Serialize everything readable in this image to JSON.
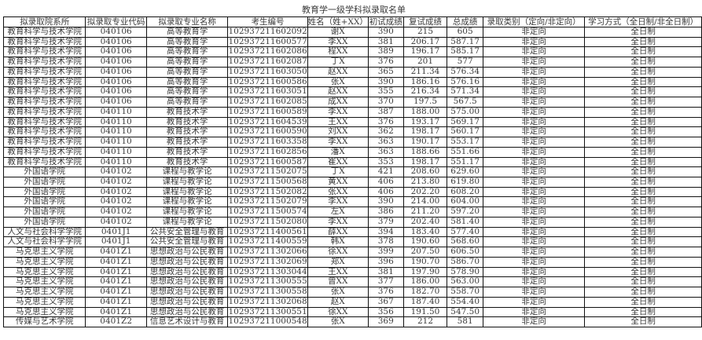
{
  "title": "教育学一级学科拟录取名单",
  "columns": [
    "拟录取院系所",
    "拟录取专业代码",
    "拟录取专业名称",
    "考生编号",
    "姓名（姓+XX）",
    "初试成绩",
    "复试成绩",
    "总成绩",
    "录取类别（定向/非定向）",
    "学习方式（全日制/非全日制）"
  ],
  "rows": [
    [
      "教育科学与技术学院",
      "040106",
      "高等教育学",
      "102937211602092",
      "谢X",
      "390",
      "215",
      "605",
      "非定向",
      "全日制"
    ],
    [
      "教育科学与技术学院",
      "040106",
      "高等教育学",
      "102937211600577",
      "李XX",
      "381",
      "206.17",
      "587.17",
      "非定向",
      "全日制"
    ],
    [
      "教育科学与技术学院",
      "040106",
      "高等教育学",
      "102937211602086",
      "程XX",
      "389",
      "196.17",
      "585.17",
      "非定向",
      "全日制"
    ],
    [
      "教育科学与技术学院",
      "040106",
      "高等教育学",
      "102937211602087",
      "丁X",
      "376",
      "201",
      "577",
      "非定向",
      "全日制"
    ],
    [
      "教育科学与技术学院",
      "040106",
      "高等教育学",
      "102937211603050",
      "赵XX",
      "365",
      "211.34",
      "576.34",
      "非定向",
      "全日制"
    ],
    [
      "教育科学与技术学院",
      "040106",
      "高等教育学",
      "102937211600586",
      "张X",
      "390",
      "186.16",
      "576.16",
      "非定向",
      "全日制"
    ],
    [
      "教育科学与技术学院",
      "040106",
      "高等教育学",
      "102937211603051",
      "赵XX",
      "355",
      "216.34",
      "571.34",
      "非定向",
      "全日制"
    ],
    [
      "教育科学与技术学院",
      "040106",
      "高等教育学",
      "102937211602085",
      "成XX",
      "370",
      "197.5",
      "567.5",
      "非定向",
      "全日制"
    ],
    [
      "教育科学与技术学院",
      "040110",
      "教育技术学",
      "102937211600589",
      "李XX",
      "387",
      "188.00",
      "575.00",
      "非定向",
      "全日制"
    ],
    [
      "教育科学与技术学院",
      "040110",
      "教育技术学",
      "102937211604539",
      "王XX",
      "376",
      "193.17",
      "569.17",
      "非定向",
      "全日制"
    ],
    [
      "教育科学与技术学院",
      "040110",
      "教育技术学",
      "102937211600590",
      "刘XX",
      "362",
      "198.17",
      "560.17",
      "非定向",
      "全日制"
    ],
    [
      "教育科学与技术学院",
      "040110",
      "教育技术学",
      "102937211603358",
      "李XX",
      "363",
      "190.17",
      "553.17",
      "非定向",
      "全日制"
    ],
    [
      "教育科学与技术学院",
      "040110",
      "教育技术学",
      "102937211602856",
      "潘X",
      "363",
      "188.66",
      "551.66",
      "非定向",
      "全日制"
    ],
    [
      "教育科学与技术学院",
      "040110",
      "教育技术学",
      "102937211600587",
      "崔XX",
      "353",
      "198.17",
      "551.17",
      "非定向",
      "全日制"
    ],
    [
      "外国语学院",
      "040102",
      "课程与教学论",
      "102937211502075",
      "丁X",
      "421",
      "208.60",
      "629.60",
      "非定向",
      "全日制"
    ],
    [
      "外国语学院",
      "040102",
      "课程与教学论",
      "102937211500568",
      "黄XX",
      "406",
      "213.80",
      "619.80",
      "非定向",
      "全日制"
    ],
    [
      "外国语学院",
      "040102",
      "课程与教学论",
      "102937211502082",
      "张XX",
      "406",
      "202.20",
      "608.20",
      "非定向",
      "全日制"
    ],
    [
      "外国语学院",
      "040102",
      "课程与教学论",
      "102937211502079",
      "李XX",
      "390",
      "214.00",
      "604.00",
      "非定向",
      "全日制"
    ],
    [
      "外国语学院",
      "040102",
      "课程与教学论",
      "102937211500574",
      "左X",
      "386",
      "211.20",
      "597.20",
      "非定向",
      "全日制"
    ],
    [
      "外国语学院",
      "040102",
      "课程与教学论",
      "102937211502080",
      "李XX",
      "379",
      "202.40",
      "581.40",
      "非定向",
      "全日制"
    ],
    [
      "人文与社会科学学院",
      "0401J1",
      "公共安全管理与教育",
      "102937211400561",
      "薛XX",
      "394",
      "183.40",
      "577.40",
      "非定向",
      "全日制"
    ],
    [
      "人文与社会科学学院",
      "0401J1",
      "公共安全管理与教育",
      "102937211400559",
      "韩X",
      "378",
      "190.60",
      "568.60",
      "非定向",
      "全日制"
    ],
    [
      "马克思主义学院",
      "0401Z1",
      "思想政治与公民教育",
      "102937211302066",
      "徐XX",
      "399",
      "207.50",
      "606.50",
      "非定向",
      "全日制"
    ],
    [
      "马克思主义学院",
      "0401Z1",
      "思想政治与公民教育",
      "102937211302069",
      "郑X",
      "396",
      "190.70",
      "586.70",
      "非定向",
      "全日制"
    ],
    [
      "马克思主义学院",
      "0401Z1",
      "思想政治与公民教育",
      "102937211303044",
      "王XX",
      "381",
      "197.90",
      "578.90",
      "非定向",
      "全日制"
    ],
    [
      "马克思主义学院",
      "0401Z1",
      "思想政治与公民教育",
      "102937211300555",
      "曾XX",
      "377",
      "186.00",
      "563.00",
      "非定向",
      "全日制"
    ],
    [
      "马克思主义学院",
      "0401Z1",
      "思想政治与公民教育",
      "102937211300558",
      "张X",
      "376",
      "182.70",
      "558.70",
      "非定向",
      "全日制"
    ],
    [
      "马克思主义学院",
      "0401Z1",
      "思想政治与公民教育",
      "102937211302068",
      "赵X",
      "367",
      "187.40",
      "554.40",
      "非定向",
      "全日制"
    ],
    [
      "马克思主义学院",
      "0401Z1",
      "思想政治与公民教育",
      "102937211300551",
      "徐XX",
      "356",
      "191.50",
      "547.50",
      "非定向",
      "全日制"
    ],
    [
      "传媒与艺术学院",
      "0401Z2",
      "信息艺术设计与教育",
      "102937211000548",
      "张X",
      "369",
      "212",
      "581",
      "非定向",
      "全日制"
    ]
  ]
}
